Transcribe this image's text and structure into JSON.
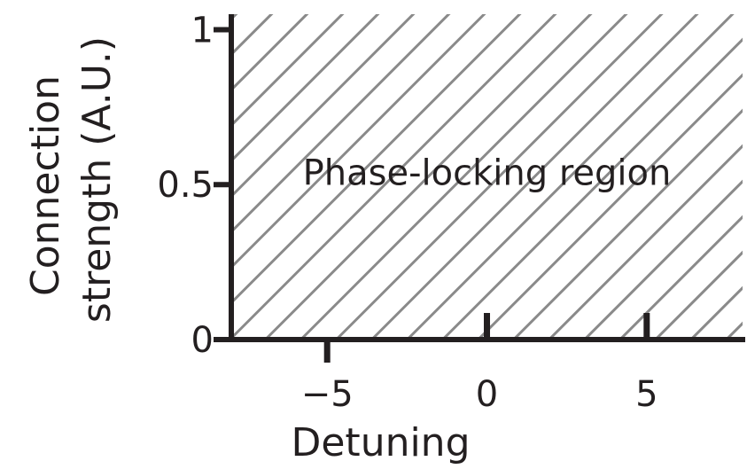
{
  "chart_data": {
    "type": "area",
    "xlabel": "Detuning",
    "ylabel_lines": [
      "Connection",
      "strength (A.U.)"
    ],
    "xlim": [
      -8,
      8
    ],
    "ylim": [
      0,
      1.05
    ],
    "xticks": [
      {
        "value": -5,
        "label": "−5",
        "side": "below"
      },
      {
        "value": 0,
        "label": "0",
        "side": "above"
      },
      {
        "value": 5,
        "label": "5",
        "side": "above"
      }
    ],
    "yticks": [
      {
        "value": 0,
        "label": "0"
      },
      {
        "value": 0.5,
        "label": "0.5"
      },
      {
        "value": 1,
        "label": "1"
      }
    ],
    "regions": [
      {
        "name": "Phase-locking region",
        "x": [
          -8,
          8
        ],
        "y": [
          0,
          1.05
        ],
        "pattern": "diagonal-hatch"
      }
    ],
    "annotations": [
      {
        "text": "Phase-locking region",
        "x": 0,
        "y": 0.54
      }
    ],
    "grid": false,
    "colors": {
      "axis": "#231f20",
      "hatch": "#8a8a8a",
      "text": "#231f20"
    }
  }
}
